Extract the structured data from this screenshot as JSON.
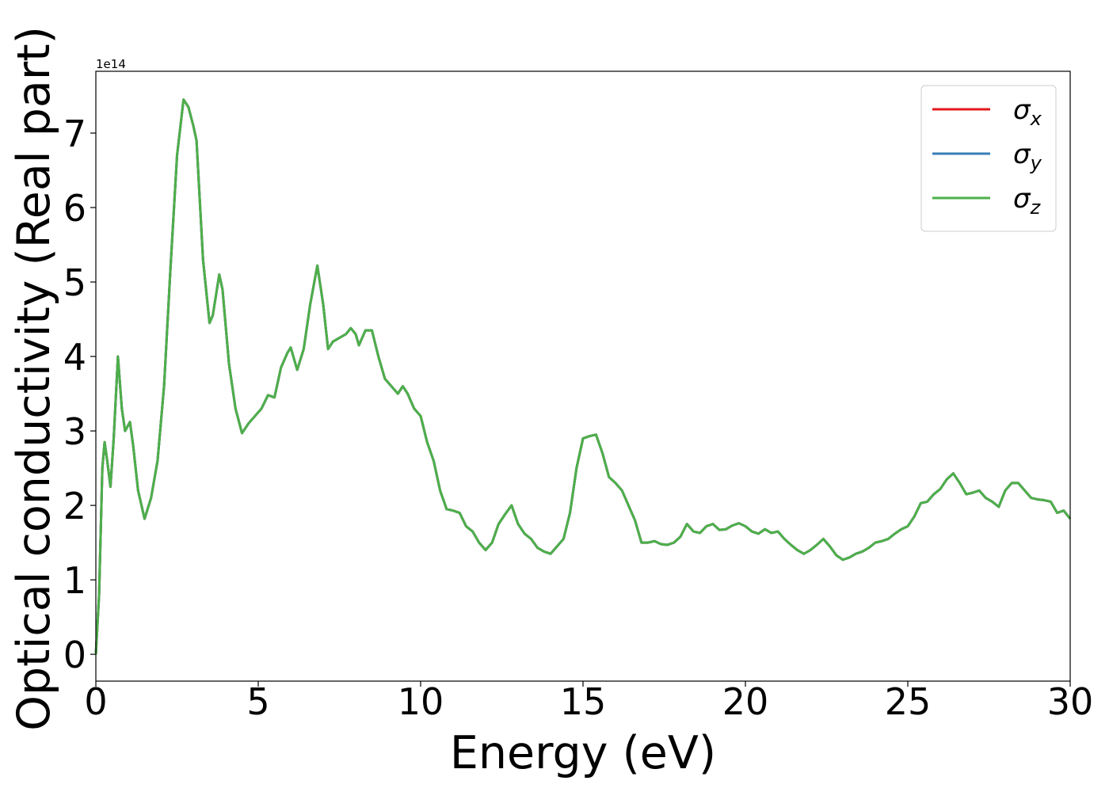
{
  "chart_data": {
    "type": "line",
    "xlabel": "Energy (eV)",
    "ylabel": "Optical conductivity (Real part)",
    "y_offset_label": "1e14",
    "legend": "upper right",
    "xlim": [
      0,
      30
    ],
    "xticks": [
      0,
      5,
      10,
      15,
      20,
      25,
      30
    ],
    "ylim": [
      -0.36,
      7.83
    ],
    "yticks": [
      0,
      1,
      2,
      3,
      4,
      5,
      6,
      7
    ],
    "x": [
      0,
      0.1,
      0.2,
      0.27,
      0.35,
      0.45,
      0.55,
      0.68,
      0.8,
      0.9,
      1.05,
      1.15,
      1.3,
      1.5,
      1.7,
      1.9,
      2.1,
      2.3,
      2.5,
      2.7,
      2.85,
      3.0,
      3.1,
      3.3,
      3.5,
      3.6,
      3.8,
      3.9,
      4.1,
      4.3,
      4.5,
      4.7,
      4.9,
      5.1,
      5.3,
      5.5,
      5.7,
      5.9,
      6.0,
      6.2,
      6.4,
      6.6,
      6.82,
      7.0,
      7.15,
      7.3,
      7.5,
      7.7,
      7.85,
      8.0,
      8.1,
      8.3,
      8.5,
      8.7,
      8.9,
      9.1,
      9.3,
      9.45,
      9.6,
      9.8,
      10.0,
      10.2,
      10.4,
      10.6,
      10.8,
      11.0,
      11.2,
      11.4,
      11.6,
      11.8,
      12.0,
      12.2,
      12.4,
      12.6,
      12.8,
      13.0,
      13.2,
      13.4,
      13.6,
      13.8,
      14.0,
      14.2,
      14.4,
      14.6,
      14.8,
      15.0,
      15.2,
      15.4,
      15.6,
      15.8,
      16.0,
      16.2,
      16.4,
      16.6,
      16.8,
      17.0,
      17.2,
      17.4,
      17.6,
      17.8,
      18.0,
      18.2,
      18.4,
      18.6,
      18.8,
      19.0,
      19.2,
      19.4,
      19.6,
      19.8,
      20.0,
      20.2,
      20.4,
      20.6,
      20.8,
      21.0,
      21.2,
      21.4,
      21.6,
      21.8,
      22.0,
      22.2,
      22.4,
      22.6,
      22.8,
      23.0,
      23.2,
      23.4,
      23.6,
      23.8,
      24.0,
      24.2,
      24.4,
      24.6,
      24.8,
      25.0,
      25.2,
      25.4,
      25.6,
      25.8,
      26.0,
      26.2,
      26.4,
      26.6,
      26.8,
      27.0,
      27.2,
      27.4,
      27.6,
      27.8,
      28.0,
      28.2,
      28.4,
      28.6,
      28.8,
      29.0,
      29.2,
      29.4,
      29.6,
      29.8,
      30.0
    ],
    "series": [
      {
        "name": "σx",
        "color": "#e41a1c",
        "values": [
          0,
          0.8,
          2.5,
          2.85,
          2.6,
          2.25,
          2.9,
          4.0,
          3.3,
          3.0,
          3.12,
          2.8,
          2.2,
          1.82,
          2.1,
          2.6,
          3.6,
          5.2,
          6.7,
          7.45,
          7.35,
          7.1,
          6.9,
          5.3,
          4.45,
          4.55,
          5.1,
          4.9,
          3.9,
          3.3,
          2.97,
          3.1,
          3.2,
          3.3,
          3.48,
          3.45,
          3.85,
          4.05,
          4.12,
          3.82,
          4.1,
          4.7,
          5.22,
          4.7,
          4.1,
          4.2,
          4.25,
          4.3,
          4.38,
          4.3,
          4.15,
          4.35,
          4.35,
          4.0,
          3.7,
          3.6,
          3.5,
          3.6,
          3.5,
          3.3,
          3.2,
          2.85,
          2.6,
          2.2,
          1.95,
          1.93,
          1.9,
          1.72,
          1.65,
          1.5,
          1.4,
          1.5,
          1.75,
          1.88,
          2.0,
          1.75,
          1.62,
          1.55,
          1.43,
          1.38,
          1.35,
          1.45,
          1.55,
          1.9,
          2.5,
          2.9,
          2.93,
          2.95,
          2.7,
          2.38,
          2.3,
          2.2,
          2.0,
          1.8,
          1.5,
          1.5,
          1.52,
          1.48,
          1.47,
          1.5,
          1.58,
          1.75,
          1.65,
          1.63,
          1.72,
          1.75,
          1.67,
          1.68,
          1.73,
          1.76,
          1.72,
          1.65,
          1.62,
          1.68,
          1.63,
          1.65,
          1.55,
          1.47,
          1.4,
          1.35,
          1.4,
          1.47,
          1.55,
          1.45,
          1.33,
          1.27,
          1.3,
          1.35,
          1.38,
          1.43,
          1.5,
          1.52,
          1.55,
          1.62,
          1.68,
          1.72,
          1.85,
          2.03,
          2.05,
          2.15,
          2.22,
          2.35,
          2.43,
          2.3,
          2.15,
          2.17,
          2.2,
          2.1,
          2.05,
          1.98,
          2.2,
          2.3,
          2.3,
          2.2,
          2.1,
          2.08,
          2.07,
          2.05,
          1.9,
          1.93,
          1.82
        ]
      },
      {
        "name": "σy",
        "color": "#377eb8",
        "values": [
          0,
          0.8,
          2.5,
          2.85,
          2.6,
          2.25,
          2.9,
          4.0,
          3.3,
          3.0,
          3.12,
          2.8,
          2.2,
          1.82,
          2.1,
          2.6,
          3.6,
          5.2,
          6.7,
          7.45,
          7.35,
          7.1,
          6.9,
          5.3,
          4.45,
          4.55,
          5.1,
          4.9,
          3.9,
          3.3,
          2.97,
          3.1,
          3.2,
          3.3,
          3.48,
          3.45,
          3.85,
          4.05,
          4.12,
          3.82,
          4.1,
          4.7,
          5.22,
          4.7,
          4.1,
          4.2,
          4.25,
          4.3,
          4.38,
          4.3,
          4.15,
          4.35,
          4.35,
          4.0,
          3.7,
          3.6,
          3.5,
          3.6,
          3.5,
          3.3,
          3.2,
          2.85,
          2.6,
          2.2,
          1.95,
          1.93,
          1.9,
          1.72,
          1.65,
          1.5,
          1.4,
          1.5,
          1.75,
          1.88,
          2.0,
          1.75,
          1.62,
          1.55,
          1.43,
          1.38,
          1.35,
          1.45,
          1.55,
          1.9,
          2.5,
          2.9,
          2.93,
          2.95,
          2.7,
          2.38,
          2.3,
          2.2,
          2.0,
          1.8,
          1.5,
          1.5,
          1.52,
          1.48,
          1.47,
          1.5,
          1.58,
          1.75,
          1.65,
          1.63,
          1.72,
          1.75,
          1.67,
          1.68,
          1.73,
          1.76,
          1.72,
          1.65,
          1.62,
          1.68,
          1.63,
          1.65,
          1.55,
          1.47,
          1.4,
          1.35,
          1.4,
          1.47,
          1.55,
          1.45,
          1.33,
          1.27,
          1.3,
          1.35,
          1.38,
          1.43,
          1.5,
          1.52,
          1.55,
          1.62,
          1.68,
          1.72,
          1.85,
          2.03,
          2.05,
          2.15,
          2.22,
          2.35,
          2.43,
          2.3,
          2.15,
          2.17,
          2.2,
          2.1,
          2.05,
          1.98,
          2.2,
          2.3,
          2.3,
          2.2,
          2.1,
          2.08,
          2.07,
          2.05,
          1.9,
          1.93,
          1.82
        ]
      },
      {
        "name": "σz",
        "color": "#4daf4a",
        "values": [
          0,
          0.8,
          2.5,
          2.85,
          2.6,
          2.25,
          2.9,
          4.0,
          3.3,
          3.0,
          3.12,
          2.8,
          2.2,
          1.82,
          2.1,
          2.6,
          3.6,
          5.2,
          6.7,
          7.45,
          7.35,
          7.1,
          6.9,
          5.3,
          4.45,
          4.55,
          5.1,
          4.9,
          3.9,
          3.3,
          2.97,
          3.1,
          3.2,
          3.3,
          3.48,
          3.45,
          3.85,
          4.05,
          4.12,
          3.82,
          4.1,
          4.7,
          5.22,
          4.7,
          4.1,
          4.2,
          4.25,
          4.3,
          4.38,
          4.3,
          4.15,
          4.35,
          4.35,
          4.0,
          3.7,
          3.6,
          3.5,
          3.6,
          3.5,
          3.3,
          3.2,
          2.85,
          2.6,
          2.2,
          1.95,
          1.93,
          1.9,
          1.72,
          1.65,
          1.5,
          1.4,
          1.5,
          1.75,
          1.88,
          2.0,
          1.75,
          1.62,
          1.55,
          1.43,
          1.38,
          1.35,
          1.45,
          1.55,
          1.9,
          2.5,
          2.9,
          2.93,
          2.95,
          2.7,
          2.38,
          2.3,
          2.2,
          2.0,
          1.8,
          1.5,
          1.5,
          1.52,
          1.48,
          1.47,
          1.5,
          1.58,
          1.75,
          1.65,
          1.63,
          1.72,
          1.75,
          1.67,
          1.68,
          1.73,
          1.76,
          1.72,
          1.65,
          1.62,
          1.68,
          1.63,
          1.65,
          1.55,
          1.47,
          1.4,
          1.35,
          1.4,
          1.47,
          1.55,
          1.45,
          1.33,
          1.27,
          1.3,
          1.35,
          1.38,
          1.43,
          1.5,
          1.52,
          1.55,
          1.62,
          1.68,
          1.72,
          1.85,
          2.03,
          2.05,
          2.15,
          2.22,
          2.35,
          2.43,
          2.3,
          2.15,
          2.17,
          2.2,
          2.1,
          2.05,
          1.98,
          2.2,
          2.3,
          2.3,
          2.2,
          2.1,
          2.08,
          2.07,
          2.05,
          1.9,
          1.93,
          1.82
        ]
      }
    ]
  }
}
